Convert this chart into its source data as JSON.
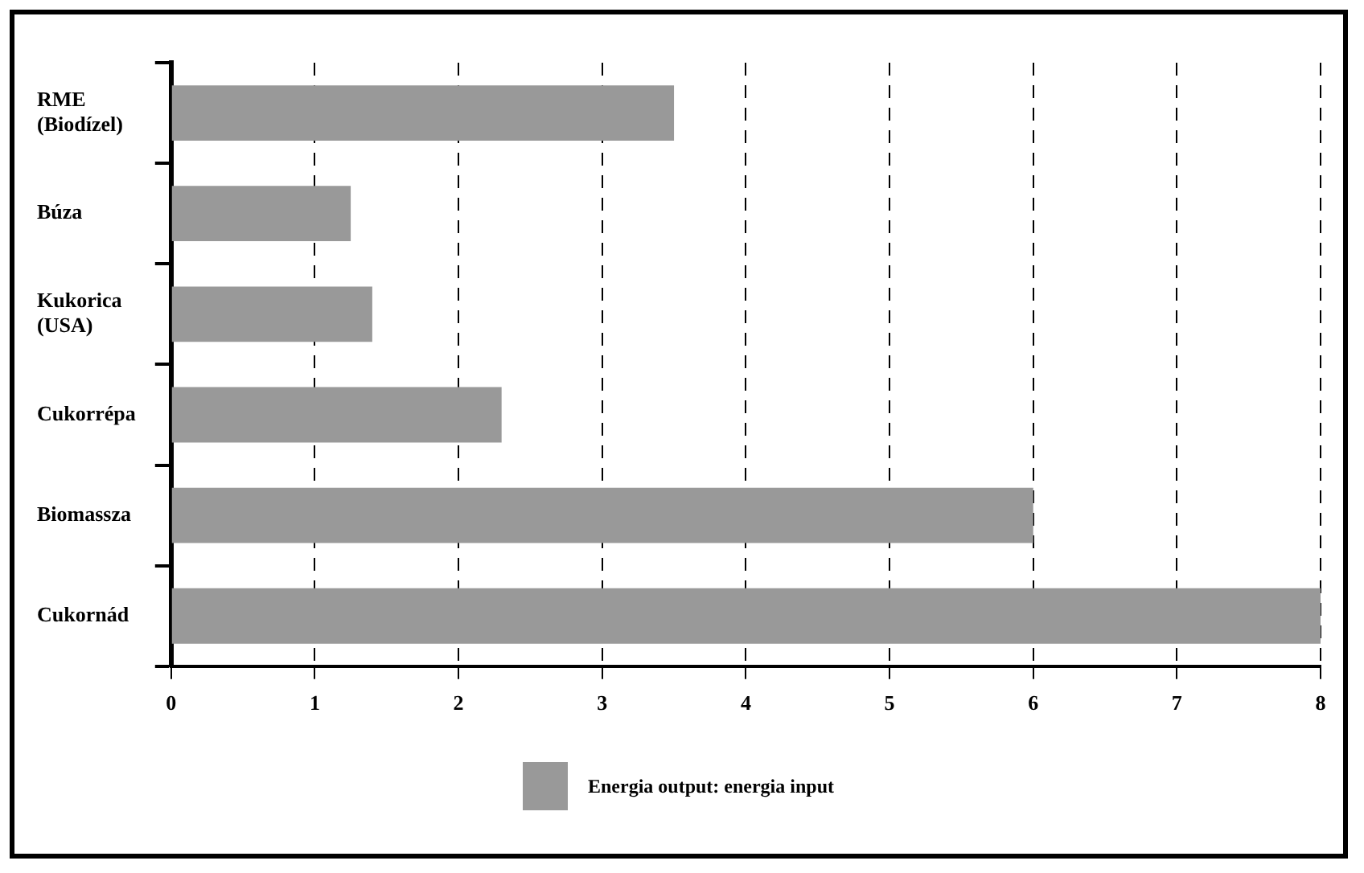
{
  "chart_data": {
    "type": "bar",
    "orientation": "horizontal",
    "categories": [
      "RME (Biodízel)",
      "Búza",
      "Kukorica (USA)",
      "Cukorrépa",
      "Biomassza",
      "Cukornád"
    ],
    "series": [
      {
        "name": "Energia output: energia input",
        "color": "#999999",
        "values": [
          3.5,
          1.25,
          1.4,
          2.3,
          6,
          8
        ]
      }
    ],
    "xlim": [
      0,
      8
    ],
    "xticks": [
      0,
      1,
      2,
      3,
      4,
      5,
      6,
      7,
      8
    ],
    "grid": "x",
    "line_style": "dashed",
    "legend": "bottom"
  }
}
